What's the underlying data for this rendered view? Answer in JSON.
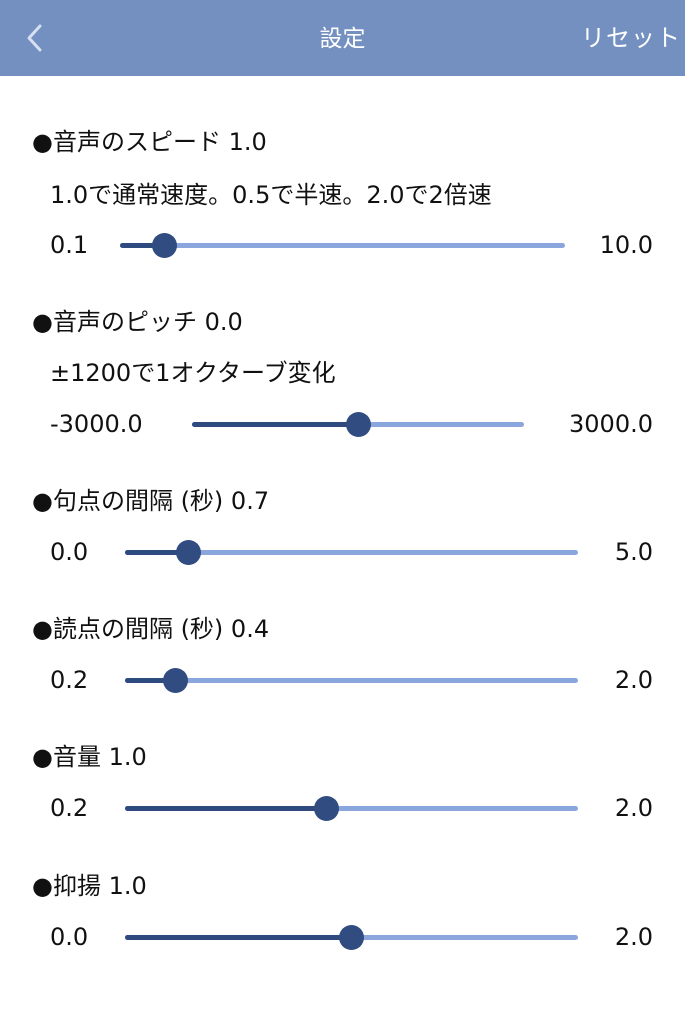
{
  "nav": {
    "title": "設定",
    "reset_label": "リセット",
    "back_icon": "chevron-left-icon"
  },
  "colors": {
    "navbar": "#7390c0",
    "track": "#8aa6dc",
    "fill": "#2e4a7e",
    "thumb": "#304c80"
  },
  "settings": [
    {
      "heading": "●音声のスピード 1.0",
      "description": "1.0で通常速度。0.5で半速。2.0で2倍速",
      "min_label": "0.1",
      "max_label": "10.0",
      "value_fraction": 0.1
    },
    {
      "heading": "●音声のピッチ 0.0",
      "description": "±1200で1オクターブ変化",
      "min_label": "-3000.0",
      "max_label": "3000.0",
      "value_fraction": 0.5
    },
    {
      "heading": "●句点の間隔 (秒) 0.7",
      "min_label": "0.0",
      "max_label": "5.0",
      "value_fraction": 0.14
    },
    {
      "heading": "●読点の間隔 (秒) 0.4",
      "min_label": "0.2",
      "max_label": "2.0",
      "value_fraction": 0.111
    },
    {
      "heading": "●音量 1.0",
      "min_label": "0.2",
      "max_label": "2.0",
      "value_fraction": 0.444
    },
    {
      "heading": "●抑揚 1.0",
      "min_label": "0.0",
      "max_label": "2.0",
      "value_fraction": 0.5
    }
  ]
}
